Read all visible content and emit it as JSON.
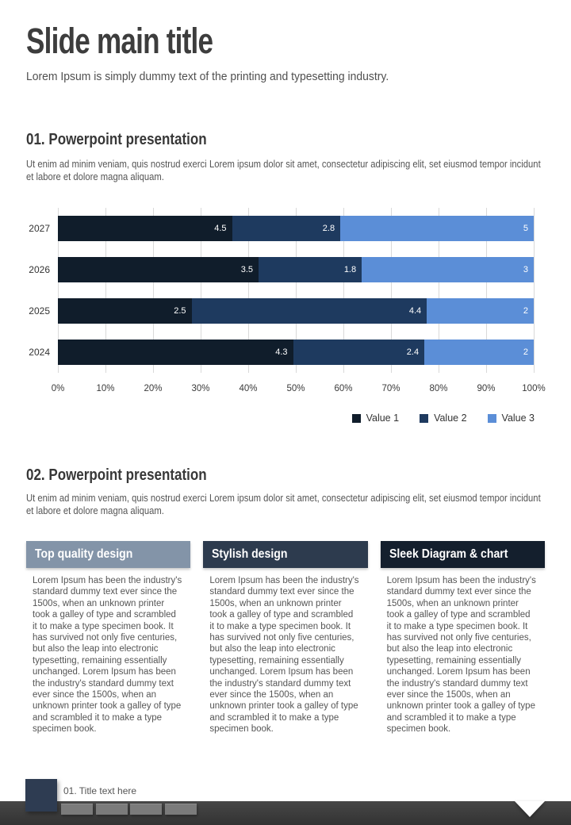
{
  "page": {
    "title": "Slide main title",
    "subtitle": "Lorem Ipsum is simply dummy text of the printing and typesetting industry."
  },
  "section1": {
    "heading": "01. Powerpoint presentation",
    "col1": "Ut enim ad minim veniam, quis nostrud exerci\net labore et dolore magna aliquam.",
    "col2": "Lorem ipsum dolor sit amet, consectetur adipiscing elit, set eiusmod tempor incidunt"
  },
  "chart_data": {
    "type": "bar",
    "orientation": "horizontal",
    "stacked": true,
    "percent_stacked": true,
    "categories": [
      "2027",
      "2026",
      "2025",
      "2024"
    ],
    "series": [
      {
        "name": "Value 1",
        "color": "#101d2b",
        "values": [
          4.5,
          3.5,
          2.5,
          4.3
        ]
      },
      {
        "name": "Value 2",
        "color": "#1e3a5f",
        "values": [
          2.8,
          1.8,
          4.4,
          2.4
        ]
      },
      {
        "name": "Value 3",
        "color": "#5b8ed7",
        "values": [
          5,
          3,
          2,
          2
        ]
      }
    ],
    "x_ticks": [
      "0%",
      "10%",
      "20%",
      "30%",
      "40%",
      "50%",
      "60%",
      "70%",
      "80%",
      "90%",
      "100%"
    ],
    "xlim": [
      0,
      100
    ],
    "grid": true,
    "legend_position": "bottom-right"
  },
  "section2": {
    "heading": "02. Powerpoint presentation",
    "col1": "Ut enim ad minim veniam, quis nostrud exerci\net labore et dolore magna aliquam.",
    "col2": "Lorem ipsum dolor sit amet, consectetur adipiscing elit, set eiusmod tempor incidunt"
  },
  "cards": [
    {
      "title": "Top quality design",
      "header_color": "#8394a8",
      "body": "Lorem Ipsum has been the industry's standard dummy text ever since the 1500s, when an unknown printer took a galley of type and scrambled it to make a type specimen book. It has survived not only five centuries, but also the leap into electronic typesetting, remaining essentially unchanged. Lorem Ipsum has been the industry's standard dummy text ever since the 1500s, when an unknown printer took a galley of type and scrambled it to make a type specimen book."
    },
    {
      "title": "Stylish design",
      "header_color": "#2d3b4e",
      "body": "Lorem Ipsum has been the industry's standard dummy text ever since the 1500s, when an unknown printer took a galley of type and scrambled it to make a type specimen book. It has survived not only five centuries, but also the leap into electronic typesetting, remaining essentially unchanged. Lorem Ipsum has been the industry's standard dummy text ever since the 1500s, when an unknown printer took a galley of type and scrambled it to make a type specimen book."
    },
    {
      "title": "Sleek Diagram & chart",
      "header_color": "#141f2d",
      "body": "Lorem Ipsum has been the industry's standard dummy text ever since the 1500s, when an unknown printer took a galley of type and scrambled it to make a type specimen book. It has survived not only five centuries, but also the leap into electronic typesetting, remaining essentially unchanged. Lorem Ipsum has been the industry's standard dummy text ever since the 1500s, when an unknown printer took a galley of type and scrambled it to make a type specimen book."
    }
  ],
  "footer": {
    "label": "01. Title text here",
    "accent_color": "#2e3c52",
    "bar_color": "#3d3d3d",
    "page_blocks": 4
  }
}
